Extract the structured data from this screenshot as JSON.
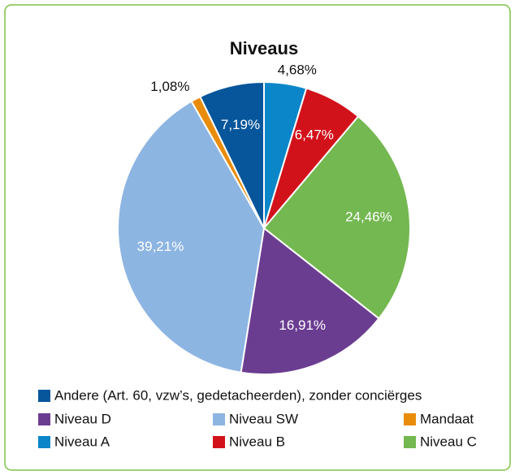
{
  "chart_data": {
    "type": "pie",
    "title": "Niveaus",
    "categories": [
      "Niveau A",
      "Niveau B",
      "Niveau C",
      "Niveau D",
      "Niveau SW",
      "Mandaat",
      "Andere (Art. 60, vzw’s, gedetacheerden), zonder conciërges"
    ],
    "values": [
      4.68,
      6.47,
      24.46,
      16.91,
      39.21,
      1.08,
      7.19
    ],
    "value_labels": [
      "4,68%",
      "6,47%",
      "24,46%",
      "16,91%",
      "39,21%",
      "1,08%",
      "7,19%"
    ],
    "colors": [
      "#0b86c9",
      "#d2121b",
      "#73b850",
      "#6b3d91",
      "#8db5e2",
      "#e98c0c",
      "#07569b"
    ]
  }
}
